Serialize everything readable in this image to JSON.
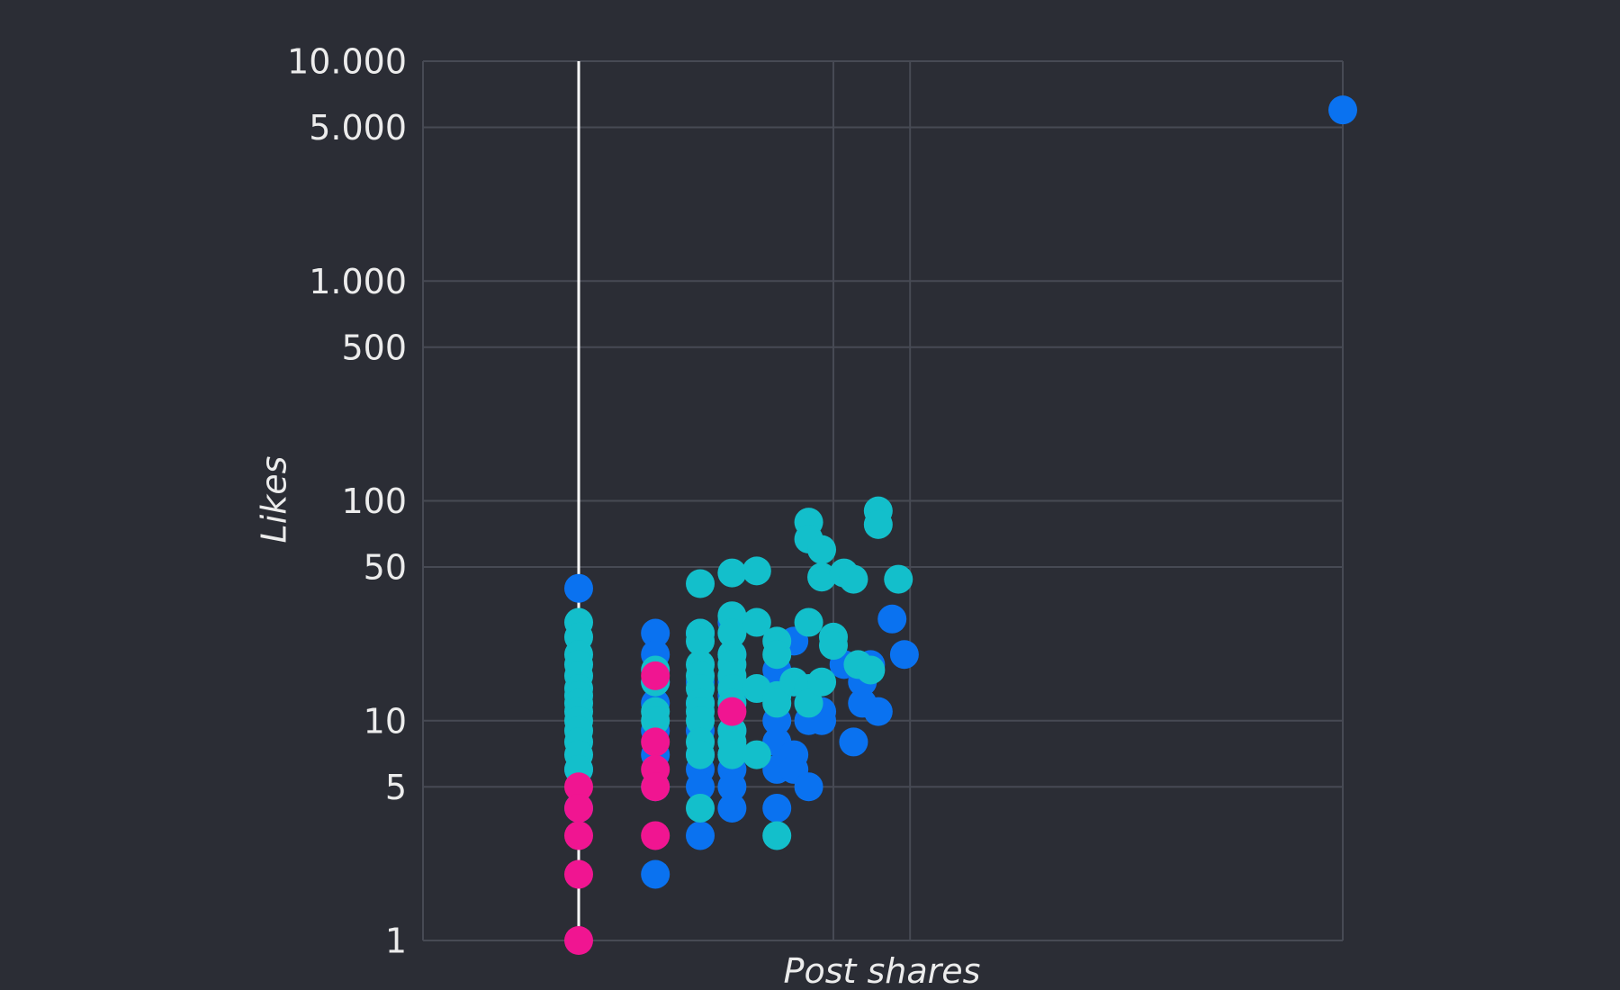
{
  "chart_data": {
    "type": "scatter",
    "title": "",
    "xlabel": "Post shares",
    "ylabel": "Likes",
    "y_scale": "log",
    "ylim": [
      1,
      10000
    ],
    "y_ticks": [
      1,
      5,
      10,
      50,
      100,
      500,
      1000,
      5000,
      10000
    ],
    "y_tick_labels": [
      "1",
      "5",
      "10",
      "50",
      "100",
      "500",
      "1.000",
      "5.000",
      "10.000"
    ],
    "x_scale": "log",
    "xlim": [
      1,
      1000
    ],
    "x_gridlines": [
      1,
      10,
      20,
      1000
    ],
    "x_tick_labels": [],
    "grid": true,
    "legend": "none",
    "highlight_line_x": 1,
    "colors": {
      "blue": "#0a72f0",
      "teal": "#13bfcb",
      "pink": "#f01591",
      "background": "#2b2d35",
      "grid": "#474a54",
      "text": "#ececec"
    },
    "series": [
      {
        "color": "blue",
        "points": [
          [
            1,
            40
          ],
          [
            1,
            6
          ],
          [
            1,
            4
          ],
          [
            2,
            25
          ],
          [
            2,
            20
          ],
          [
            2,
            15
          ],
          [
            2,
            12
          ],
          [
            2,
            9
          ],
          [
            2,
            7
          ],
          [
            2,
            5
          ],
          [
            2,
            2
          ],
          [
            3,
            25
          ],
          [
            3,
            15
          ],
          [
            3,
            12
          ],
          [
            3,
            9
          ],
          [
            3,
            7
          ],
          [
            3,
            6
          ],
          [
            3,
            5
          ],
          [
            3,
            3
          ],
          [
            4,
            28
          ],
          [
            4,
            20
          ],
          [
            4,
            15
          ],
          [
            4,
            13
          ],
          [
            4,
            9
          ],
          [
            4,
            7
          ],
          [
            4,
            6
          ],
          [
            4,
            5
          ],
          [
            4,
            4
          ],
          [
            6,
            17
          ],
          [
            6,
            14
          ],
          [
            6,
            10
          ],
          [
            6,
            8
          ],
          [
            6,
            6
          ],
          [
            6,
            4
          ],
          [
            7,
            23
          ],
          [
            7,
            15
          ],
          [
            7,
            7
          ],
          [
            7,
            6
          ],
          [
            8,
            12
          ],
          [
            8,
            10
          ],
          [
            8,
            5
          ],
          [
            9,
            11
          ],
          [
            9,
            10
          ],
          [
            11,
            18
          ],
          [
            12,
            8
          ],
          [
            13,
            15
          ],
          [
            13,
            12
          ],
          [
            14,
            18
          ],
          [
            15,
            11
          ],
          [
            17,
            29
          ],
          [
            19,
            20
          ],
          [
            1000,
            6000
          ]
        ]
      },
      {
        "color": "teal",
        "points": [
          [
            1,
            28
          ],
          [
            1,
            24
          ],
          [
            1,
            20
          ],
          [
            1,
            18
          ],
          [
            1,
            16
          ],
          [
            1,
            14
          ],
          [
            1,
            13
          ],
          [
            1,
            12
          ],
          [
            1,
            11
          ],
          [
            1,
            10
          ],
          [
            1,
            9
          ],
          [
            1,
            8
          ],
          [
            1,
            7
          ],
          [
            1,
            6
          ],
          [
            2,
            17
          ],
          [
            2,
            15
          ],
          [
            2,
            11
          ],
          [
            2,
            10
          ],
          [
            3,
            42
          ],
          [
            3,
            25
          ],
          [
            3,
            23
          ],
          [
            3,
            18
          ],
          [
            3,
            16
          ],
          [
            3,
            14
          ],
          [
            3,
            12
          ],
          [
            3,
            11
          ],
          [
            3,
            10
          ],
          [
            3,
            8
          ],
          [
            3,
            7
          ],
          [
            3,
            4
          ],
          [
            4,
            47
          ],
          [
            4,
            30
          ],
          [
            4,
            25
          ],
          [
            4,
            20
          ],
          [
            4,
            18
          ],
          [
            4,
            16
          ],
          [
            4,
            14
          ],
          [
            4,
            12
          ],
          [
            4,
            9
          ],
          [
            4,
            8
          ],
          [
            4,
            7
          ],
          [
            5,
            48
          ],
          [
            5,
            28
          ],
          [
            5,
            14
          ],
          [
            5,
            7
          ],
          [
            6,
            23
          ],
          [
            6,
            20
          ],
          [
            6,
            13
          ],
          [
            6,
            12
          ],
          [
            6,
            3
          ],
          [
            7,
            15
          ],
          [
            8,
            80
          ],
          [
            8,
            67
          ],
          [
            8,
            28
          ],
          [
            8,
            14
          ],
          [
            8,
            12
          ],
          [
            9,
            60
          ],
          [
            9,
            45
          ],
          [
            9,
            15
          ],
          [
            10,
            24
          ],
          [
            10,
            22
          ],
          [
            11,
            47
          ],
          [
            12,
            44
          ],
          [
            12.5,
            18
          ],
          [
            14,
            17
          ],
          [
            15,
            90
          ],
          [
            15,
            78
          ],
          [
            18,
            44
          ]
        ]
      },
      {
        "color": "pink",
        "points": [
          [
            1,
            5
          ],
          [
            1,
            4
          ],
          [
            1,
            3
          ],
          [
            1,
            2
          ],
          [
            1,
            1
          ],
          [
            2,
            16
          ],
          [
            2,
            8
          ],
          [
            2,
            6
          ],
          [
            2,
            5
          ],
          [
            2,
            3
          ],
          [
            4,
            11
          ]
        ]
      }
    ]
  }
}
